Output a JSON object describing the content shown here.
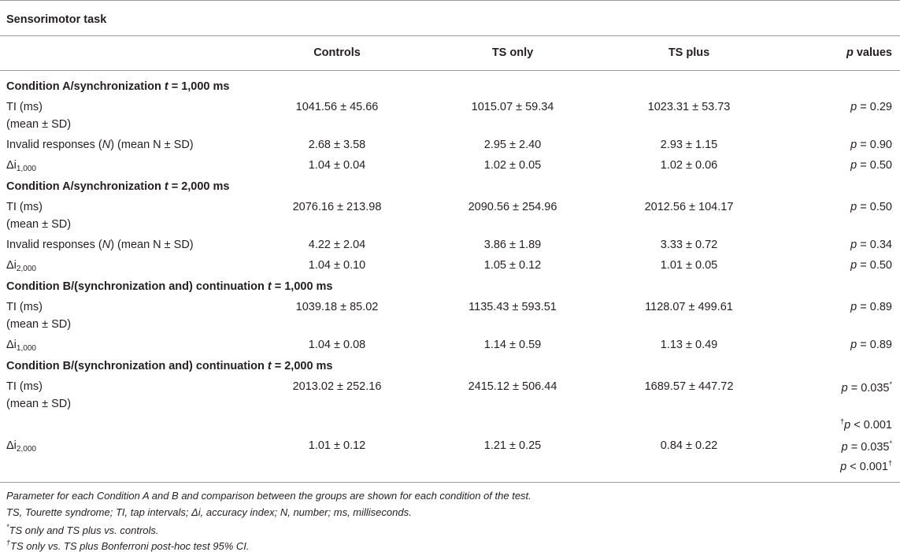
{
  "table": {
    "title": "Sensorimotor task",
    "headers": {
      "controls": "Controls",
      "ts_only": "TS only",
      "ts_plus": "TS plus",
      "p_italic": "p",
      "p_rest": " values"
    },
    "s1": {
      "pre": "Condition A/synchronization ",
      "t": "t",
      "post": " = 1,000 ms"
    },
    "s2": {
      "pre": "Condition A/synchronization ",
      "t": "t",
      "post": " = 2,000 ms"
    },
    "s3": {
      "pre": "Condition B/(synchronization and) continuation ",
      "t": "t",
      "post": " = 1,000 ms"
    },
    "s4": {
      "pre": "Condition B/(synchronization and) continuation ",
      "t": "t",
      "post": " = 2,000 ms"
    },
    "labels": {
      "ti": "TI (ms)",
      "mean_sd": "(mean ± SD)",
      "inv_pre": "Invalid responses (",
      "inv_n": "N",
      "inv_post": ") (mean N ± SD)",
      "delta": "Δi",
      "sub1000": "1,000",
      "sub2000": "2,000"
    },
    "p_letter": "p",
    "r1": {
      "c": "1041.56 ± 45.66",
      "o": "1015.07 ± 59.34",
      "pl": "1023.31 ± 53.73",
      "p": " = 0.29"
    },
    "r2": {
      "c": "2.68 ± 3.58",
      "o": "2.95 ± 2.40",
      "pl": "2.93 ± 1.15",
      "p": " = 0.90"
    },
    "r3": {
      "c": "1.04 ± 0.04",
      "o": "1.02 ± 0.05",
      "pl": "1.02 ± 0.06",
      "p": " = 0.50"
    },
    "r4": {
      "c": "2076.16 ± 213.98",
      "o": "2090.56 ± 254.96",
      "pl": "2012.56 ± 104.17",
      "p": " = 0.50"
    },
    "r5": {
      "c": "4.22 ± 2.04",
      "o": "3.86 ± 1.89",
      "pl": "3.33 ± 0.72",
      "p": " = 0.34"
    },
    "r6": {
      "c": "1.04 ± 0.10",
      "o": "1.05 ± 0.12",
      "pl": "1.01 ± 0.05",
      "p": " = 0.50"
    },
    "r7": {
      "c": "1039.18 ± 85.02",
      "o": "1135.43 ± 593.51",
      "pl": "1128.07 ± 499.61",
      "p": " = 0.89"
    },
    "r8": {
      "c": "1.04 ± 0.08",
      "o": "1.14 ± 0.59",
      "pl": "1.13 ± 0.49",
      "p": " = 0.89"
    },
    "r9": {
      "c": "2013.02 ± 252.16",
      "o": "2415.12 ± 506.44",
      "pl": "1689.57 ± 447.72",
      "p": " = 0.035",
      "mark": "*",
      "p2": " < 0.001",
      "mark2": "†"
    },
    "r10": {
      "c": "1.01 ± 0.12",
      "o": "1.21 ± 0.25",
      "pl": "0.84 ± 0.22",
      "p": " = 0.035",
      "mark": "*",
      "p2": " < 0.001",
      "mark2": "†"
    }
  },
  "footnotes": {
    "f1": "Parameter for each Condition A and B and comparison between the groups are shown for each condition of the test.",
    "f2": "TS, Tourette syndrome; TI, tap intervals; Δi, accuracy index; N, number; ms, milliseconds.",
    "f3_mark": "*",
    "f3": "TS only and TS plus vs. controls.",
    "f4_mark": "†",
    "f4": "TS only vs. TS plus Bonferroni post-hoc test 95% CI."
  }
}
